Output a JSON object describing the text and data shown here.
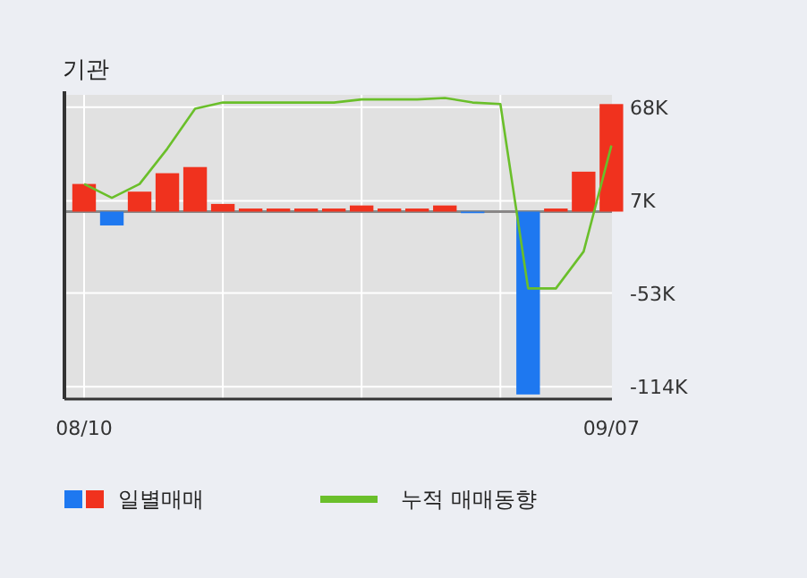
{
  "chart_data": {
    "type": "bar",
    "title": "기관",
    "categories": [
      "08/10",
      null,
      null,
      null,
      null,
      null,
      null,
      null,
      null,
      null,
      null,
      null,
      null,
      null,
      null,
      null,
      null,
      null,
      null,
      "09/07"
    ],
    "series": [
      {
        "name": "일별매매",
        "colors": [
          "#f0321e",
          "#1e78f0",
          "#f0321e",
          "#f0321e",
          "#f0321e",
          "#f0321e",
          "#f0321e",
          "#f0321e",
          "#f0321e",
          "#f0321e",
          "#f0321e",
          "#f0321e",
          "#f0321e",
          "#f0321e",
          "#1e78f0",
          "#f0321e",
          "#1e78f0",
          "#f0321e",
          "#f0321e",
          "#f0321e"
        ],
        "values": [
          18,
          -9,
          13,
          25,
          29,
          5,
          2,
          2,
          2,
          2,
          4,
          2,
          2,
          4,
          -1,
          0,
          -119,
          2,
          26,
          70
        ]
      },
      {
        "name": "누적 매매동향",
        "type": "line",
        "color": "#6abf2a",
        "values": [
          18,
          9,
          18,
          41,
          67,
          71,
          71,
          71,
          71,
          71,
          73,
          73,
          73,
          74,
          71,
          70,
          -50,
          -50,
          -26,
          43
        ]
      }
    ],
    "ylim": [
      -122,
      76
    ],
    "yticks": [
      {
        "value": 68,
        "label": "68K"
      },
      {
        "value": 7,
        "label": "7K"
      },
      {
        "value": -53,
        "label": "-53K"
      },
      {
        "value": -114,
        "label": "-114K"
      }
    ],
    "grid": true,
    "legend": "bottom"
  }
}
